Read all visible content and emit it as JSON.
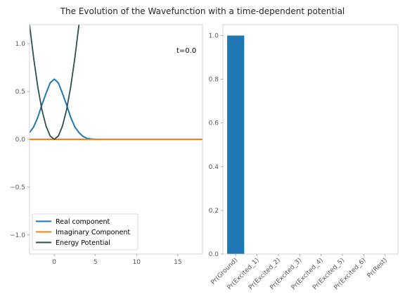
{
  "title": "The Evolution of the Wavefunction with a time-dependent potential",
  "chart_data": [
    {
      "type": "line",
      "annotation": "t=0.0",
      "xlim": [
        -3,
        18
      ],
      "ylim": [
        -1.2,
        1.2
      ],
      "xticks": [
        0,
        5,
        10,
        15
      ],
      "yticks": [
        -1.0,
        -0.5,
        0.0,
        0.5,
        1.0
      ],
      "xtick_labels": [
        "0",
        "5",
        "10",
        "15"
      ],
      "ytick_labels": [
        "−1.0",
        "−0.5",
        "0.0",
        "0.5",
        "1.0"
      ],
      "grid": false,
      "legend_position": "lower-left",
      "series": [
        {
          "name": "Real component",
          "color": "#1f77b4",
          "x": [
            -3,
            -2.5,
            -2,
            -1.5,
            -1,
            -0.5,
            0,
            0.5,
            1,
            1.5,
            2,
            2.5,
            3,
            3.5,
            4,
            4.5,
            5,
            5.5,
            6,
            8,
            10,
            12,
            14,
            16,
            18
          ],
          "y": [
            0.07,
            0.13,
            0.23,
            0.36,
            0.48,
            0.59,
            0.63,
            0.59,
            0.48,
            0.36,
            0.23,
            0.13,
            0.07,
            0.03,
            0.01,
            0.004,
            0.001,
            0,
            0,
            0,
            0,
            0,
            0,
            0,
            0
          ]
        },
        {
          "name": "Imaginary Component",
          "color": "#ff7f0e",
          "x": [
            -3,
            18
          ],
          "y": [
            0,
            0
          ]
        },
        {
          "name": "Energy Potential",
          "color": "#2f4f4f",
          "x": [
            -3,
            -2.5,
            -2,
            -1.5,
            -1,
            -0.5,
            0,
            0.5,
            1,
            1.5,
            2,
            2.5,
            3,
            3.2
          ],
          "y": [
            1.2,
            0.85,
            0.55,
            0.31,
            0.14,
            0.035,
            0,
            0.035,
            0.14,
            0.31,
            0.55,
            0.85,
            1.2,
            1.35
          ]
        }
      ]
    },
    {
      "type": "bar",
      "categories": [
        "Pr(Ground)",
        "Pr(Excited_1)",
        "Pr(Excited_2)",
        "Pr(Excited_3)",
        "Pr(Excited_4)",
        "Pr(Excited_5)",
        "Pr(Excited_6)",
        "Pr(Rest)"
      ],
      "values": [
        1.0,
        0,
        0,
        0,
        0,
        0,
        0,
        0
      ],
      "color": "#1f77b4",
      "ylim": [
        0,
        1.05
      ],
      "yticks": [
        0.0,
        0.2,
        0.4,
        0.6,
        0.8,
        1.0
      ],
      "ytick_labels": [
        "0.0",
        "0.2",
        "0.4",
        "0.6",
        "0.8",
        "1.0"
      ],
      "grid": false
    }
  ]
}
